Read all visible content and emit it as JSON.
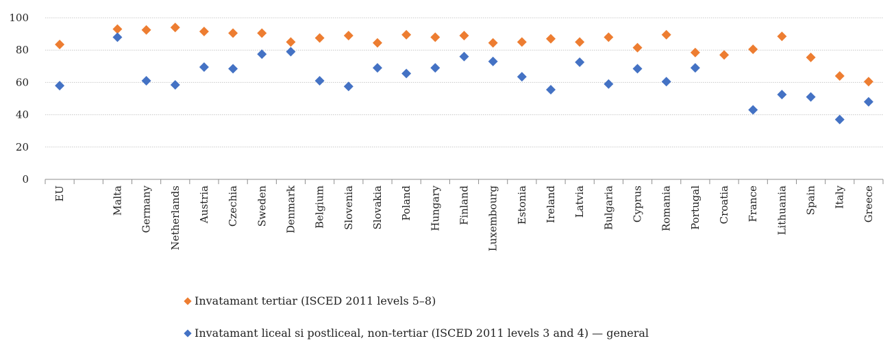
{
  "chart_data": {
    "type": "scatter",
    "title": "",
    "xlabel": "",
    "ylabel": "",
    "ylim": [
      0,
      100
    ],
    "yticks": [
      0,
      20,
      40,
      60,
      80,
      100
    ],
    "grid": true,
    "legend_position": "bottom",
    "categories": [
      "EU",
      "",
      "Malta",
      "Germany",
      "Netherlands",
      "Austria",
      "Czechia",
      "Sweden",
      "Denmark",
      "Belgium",
      "Slovenia",
      "Slovakia",
      "Poland",
      "Hungary",
      "Finland",
      "Luxembourg",
      "Estonia",
      "Ireland",
      "Latvia",
      "Bulgaria",
      "Cyprus",
      "Romania",
      "Portugal",
      "Croatia",
      "France",
      "Lithuania",
      "Spain",
      "Italy",
      "Greece"
    ],
    "series": [
      {
        "name": "Invatamant tertiar (ISCED 2011 levels 5–8)",
        "color": "#ED7D31",
        "marker": "diamond",
        "values": [
          83.5,
          null,
          93,
          92.5,
          94,
          91.5,
          90.5,
          90.5,
          85,
          87.5,
          89,
          84.5,
          89.5,
          88,
          89,
          84.5,
          85,
          87,
          85,
          88,
          81.5,
          89.5,
          78.5,
          77,
          80.5,
          88.5,
          75.5,
          64,
          60.5
        ]
      },
      {
        "name": "Invatamant liceal si postliceal, non-tertiar (ISCED 2011 levels 3 and 4) — general",
        "color": "#4472C4",
        "marker": "diamond",
        "values": [
          58,
          null,
          88,
          61,
          58.5,
          69.5,
          68.5,
          77.5,
          79,
          61,
          57.5,
          69,
          65.5,
          69,
          76,
          73,
          63.5,
          55.5,
          72.5,
          59,
          68.5,
          60.5,
          69,
          null,
          43,
          52.5,
          51,
          37,
          48
        ]
      }
    ]
  }
}
